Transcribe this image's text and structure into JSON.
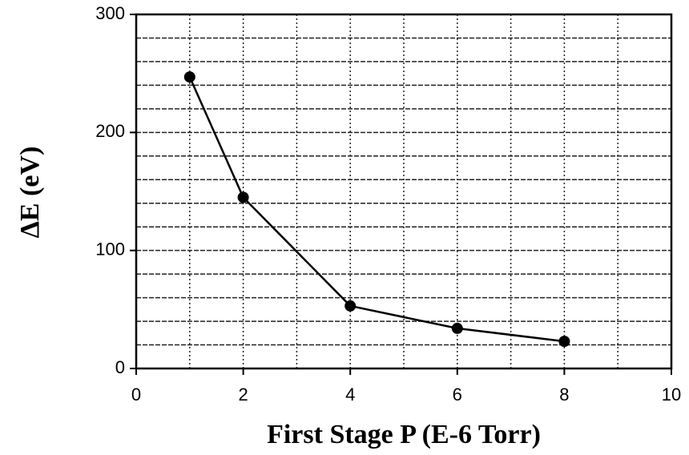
{
  "chart_data": {
    "type": "line",
    "x_label": "First Stage P (E-6 Torr)",
    "y_label": "ΔE (eV)",
    "x": [
      1,
      2,
      4,
      6,
      8
    ],
    "series": [
      {
        "color": "#000000",
        "values": [
          247,
          145,
          53,
          34,
          23
        ]
      }
    ],
    "xlim": [
      0,
      10
    ],
    "ylim": [
      0,
      300
    ],
    "xticks": [
      0,
      2,
      4,
      6,
      8,
      10
    ],
    "yticks": [
      0,
      100,
      200,
      300
    ],
    "xgrid": [
      1,
      2,
      3,
      4,
      5,
      6,
      7,
      8,
      9
    ],
    "ygrid": [
      20,
      40,
      60,
      80,
      100,
      120,
      140,
      160,
      180,
      200,
      220,
      240,
      260,
      280
    ],
    "grid": true
  }
}
